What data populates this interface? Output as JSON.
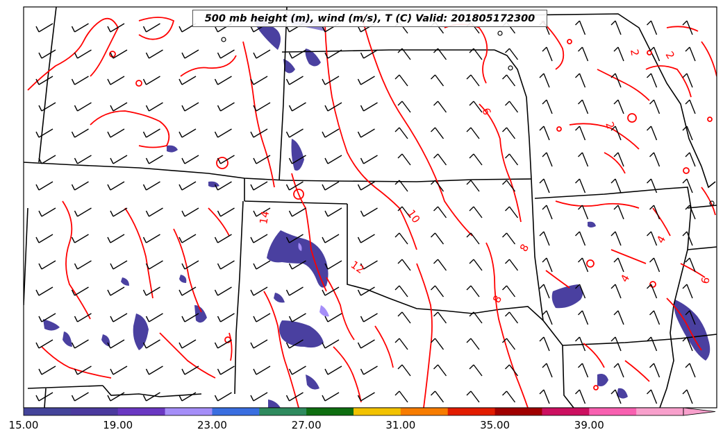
{
  "title": "500 mb height (m), wind (m/s), T (C) Valid: 201805172300",
  "colorbar": {
    "tick_labels": [
      "15.00",
      "19.00",
      "23.00",
      "27.00",
      "31.00",
      "35.00",
      "39.00"
    ],
    "colors": [
      "#44449a",
      "#4b3a9e",
      "#6a38c2",
      "#a58ef8",
      "#3a6ee0",
      "#2e8a5e",
      "#0e6e10",
      "#f2c200",
      "#f77c00",
      "#e21c00",
      "#a00000",
      "#cc1060",
      "#f860b0",
      "#f8a0cc"
    ]
  },
  "contour_labels": [
    {
      "text": "2"
    },
    {
      "text": "2"
    },
    {
      "text": "2"
    },
    {
      "text": "6"
    },
    {
      "text": "10"
    },
    {
      "text": "12"
    },
    {
      "text": "14"
    },
    {
      "text": "8"
    },
    {
      "text": "8"
    },
    {
      "text": "4"
    },
    {
      "text": "4"
    },
    {
      "text": "6"
    }
  ],
  "colors": {
    "contour": "#ff0000",
    "borders": "#000000",
    "fill": "#4a40a0"
  }
}
